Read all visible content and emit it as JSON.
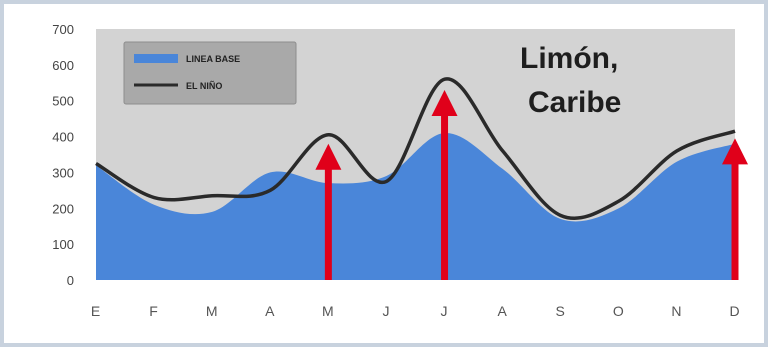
{
  "chart_data": {
    "type": "area",
    "title_lines": [
      "Limón,",
      "Caribe"
    ],
    "categories": [
      "E",
      "F",
      "M",
      "A",
      "M",
      "J",
      "J",
      "A",
      "S",
      "O",
      "N",
      "D"
    ],
    "y_ticks": [
      "0",
      "100",
      "200",
      "300",
      "400",
      "500",
      "600",
      "700"
    ],
    "ylim": [
      0,
      700
    ],
    "grid": false,
    "legend_position": "top-left",
    "series": [
      {
        "name": "LINEA BASE",
        "style": "area",
        "color": "#4a86d9",
        "values": [
          320,
          210,
          190,
          300,
          270,
          290,
          410,
          310,
          170,
          200,
          330,
          380
        ]
      },
      {
        "name": "EL NIÑO",
        "style": "line",
        "color": "#2a2a2a",
        "values": [
          325,
          230,
          235,
          250,
          405,
          275,
          560,
          360,
          180,
          220,
          360,
          415
        ]
      }
    ],
    "arrows": [
      {
        "category_index": 4,
        "from": 0,
        "to": 380
      },
      {
        "category_index": 6,
        "from": 0,
        "to": 530
      },
      {
        "category_index": 11,
        "from": 0,
        "to": 395
      }
    ],
    "colors": {
      "plot_background": "#d3d3d3",
      "arrow": "#e0001a",
      "legend_box": "#a9a9a9"
    }
  }
}
